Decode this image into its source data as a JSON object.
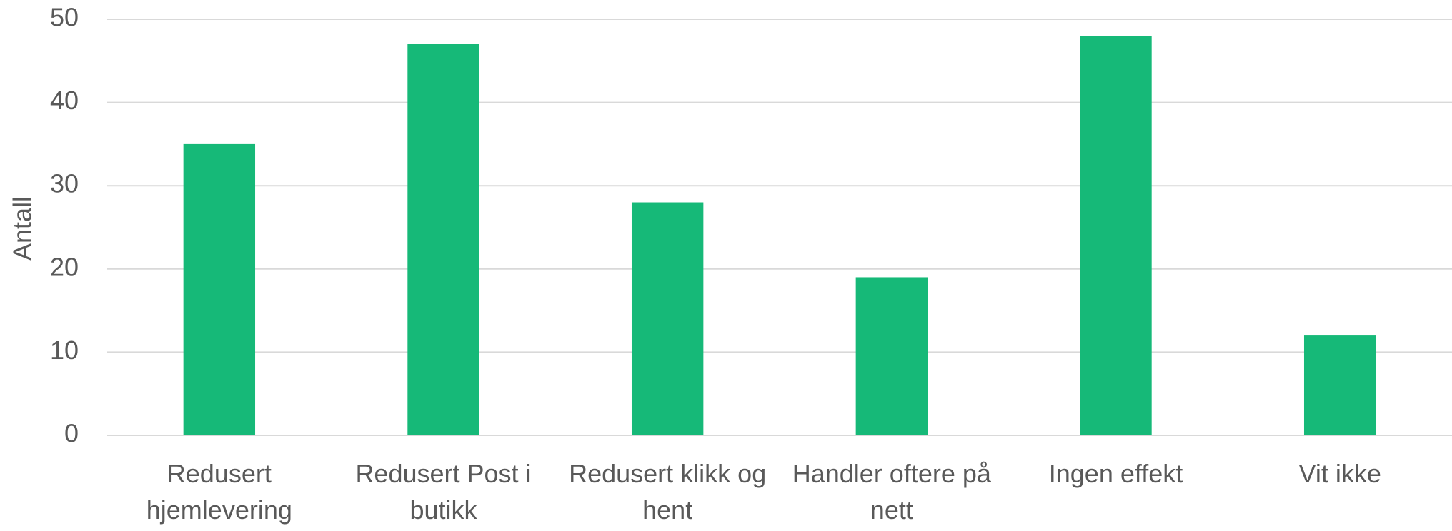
{
  "chart_data": {
    "type": "bar",
    "y_label": "Antall",
    "categories": [
      "Redusert hjemlevering",
      "Redusert Post i butikk",
      "Redusert klikk og hent",
      "Handler oftere på nett",
      "Ingen effekt",
      "Vit ikke"
    ],
    "values": [
      35,
      47,
      28,
      19,
      48,
      12
    ],
    "color": "#16b978",
    "ylim": [
      0,
      50
    ],
    "yticks": [
      0,
      10,
      20,
      30,
      40,
      50
    ],
    "grid": true
  }
}
